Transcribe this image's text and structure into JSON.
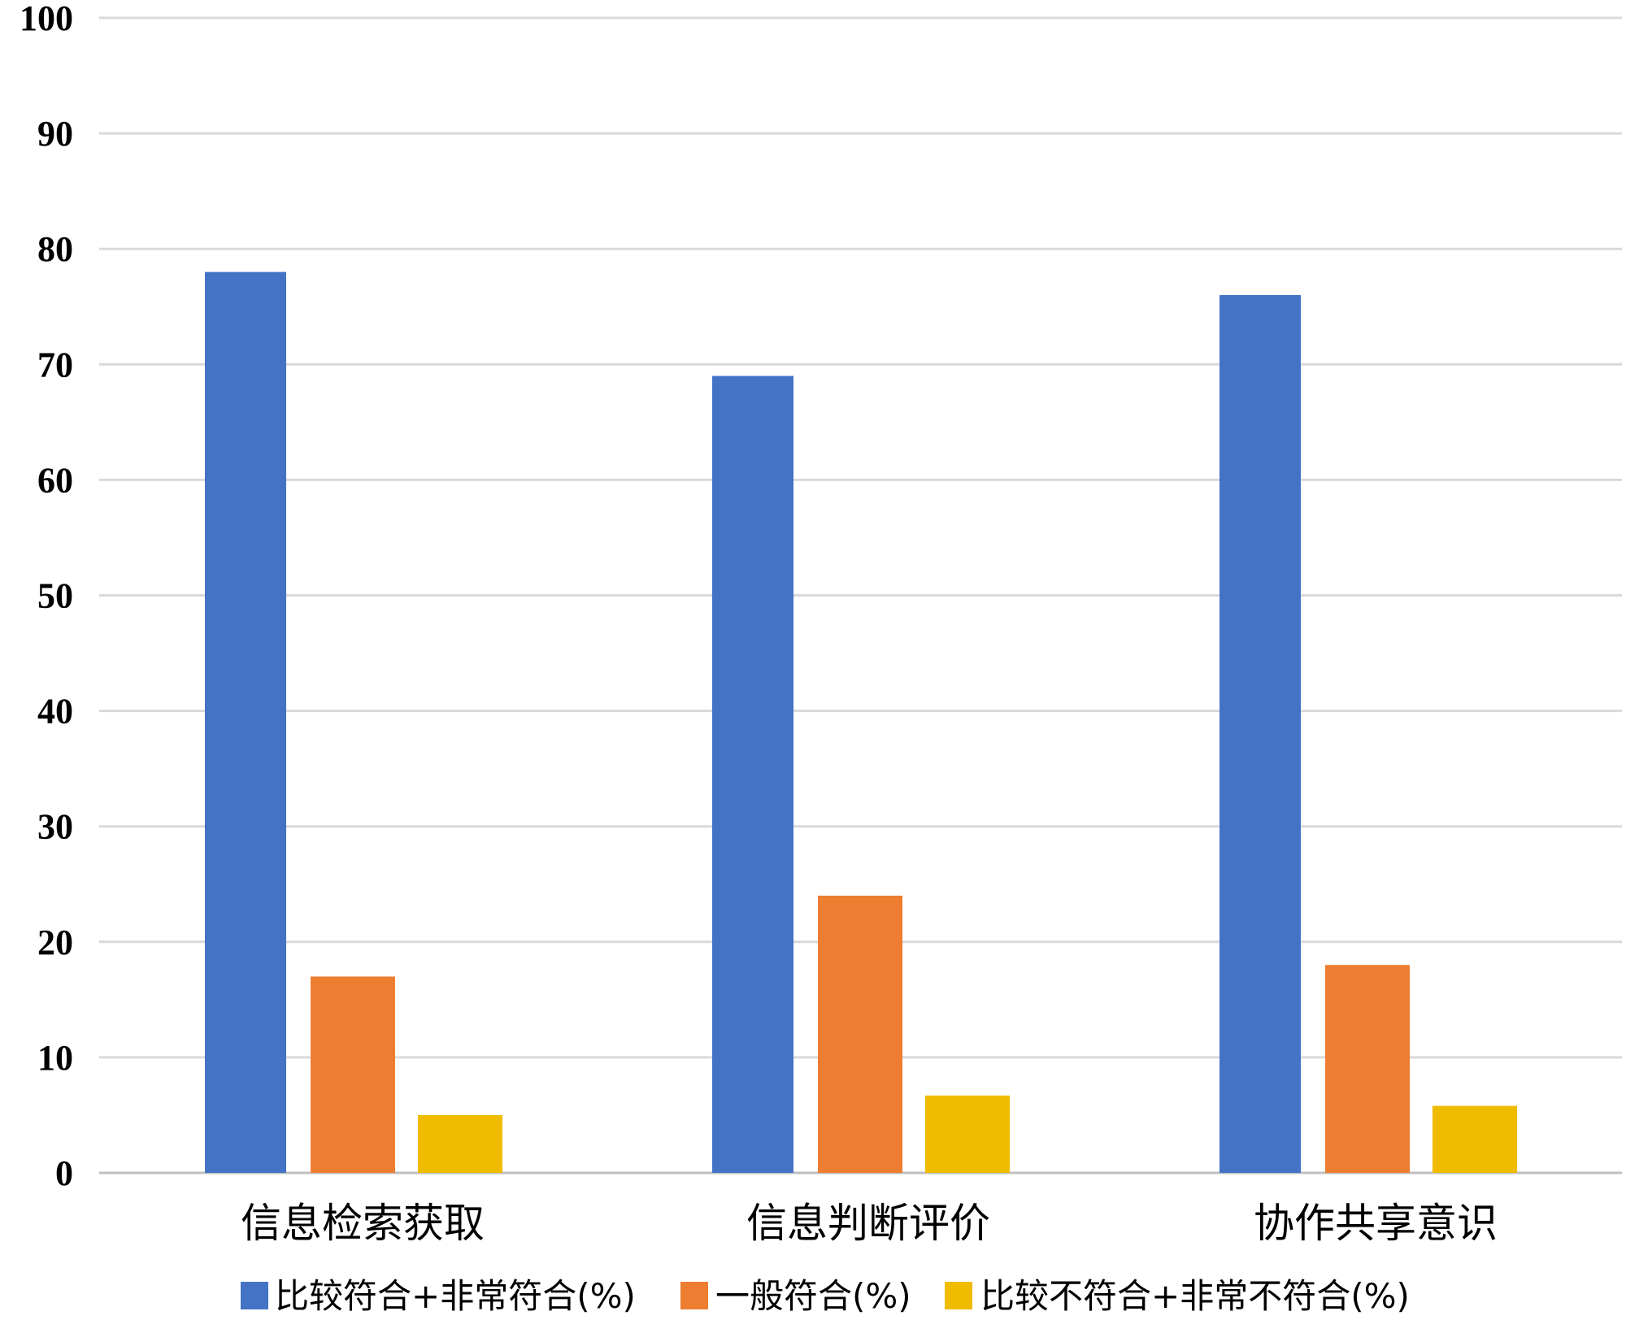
{
  "chart_data": {
    "type": "bar",
    "categories": [
      "信息检索获取",
      "信息判断评价",
      "协作共享意识"
    ],
    "series": [
      {
        "name": "比较符合+非常符合(%)",
        "values": [
          78,
          69,
          76
        ],
        "color": "#4472C4"
      },
      {
        "name": "一般符合(%)",
        "values": [
          17,
          24,
          18
        ],
        "color": "#ED7D31"
      },
      {
        "name": "比较不符合+非常不符合(%)",
        "values": [
          5,
          6.7,
          5.8
        ],
        "color": "#F0BC00"
      }
    ],
    "ylim": [
      0,
      100
    ],
    "yticks": [
      0,
      10,
      20,
      30,
      40,
      50,
      60,
      70,
      80,
      90,
      100
    ],
    "grid": true,
    "gridline_color": "#D9D9D9",
    "legend_position": "bottom",
    "title": "",
    "xlabel": "",
    "ylabel": ""
  }
}
